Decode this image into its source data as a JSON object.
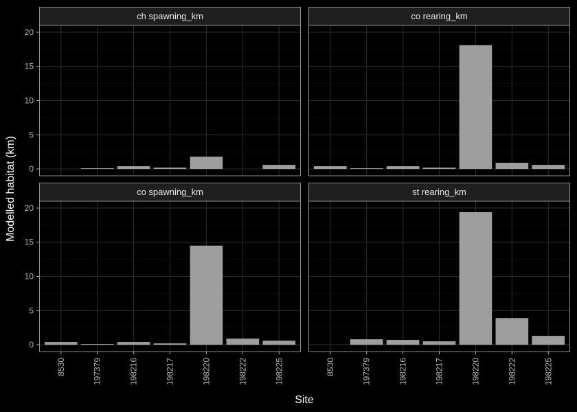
{
  "chart_data": {
    "type": "bar",
    "layout": "facet-grid 2x2",
    "xlabel": "Site",
    "ylabel": "Modelled habitat (km)",
    "categories": [
      "8530",
      "197379",
      "198216",
      "198217",
      "198220",
      "198222",
      "198225"
    ],
    "ylim": [
      -1,
      21
    ],
    "yticks": [
      0,
      5,
      10,
      15,
      20
    ],
    "grid": true,
    "colors": {
      "background": "#000000",
      "panel": "#000000",
      "strip": "#1f1f1f",
      "bar": "#9e9e9e",
      "grid_major": "#2b2b2b",
      "grid_minor": "#141414",
      "border": "#8c8c8c",
      "text": "#ffffff",
      "tick_text": "#b3b3b3"
    },
    "panels": [
      {
        "title": "ch spawning_km",
        "values": [
          0,
          0.1,
          0.4,
          0.2,
          1.8,
          0,
          0.6
        ]
      },
      {
        "title": "co rearing_km",
        "values": [
          0.4,
          0.1,
          0.4,
          0.2,
          18.1,
          0.9,
          0.6
        ]
      },
      {
        "title": "co spawning_km",
        "values": [
          0.4,
          0.1,
          0.4,
          0.2,
          14.5,
          0.9,
          0.6
        ]
      },
      {
        "title": "st rearing_km",
        "values": [
          0,
          0.8,
          0.7,
          0.5,
          19.4,
          3.9,
          1.3
        ]
      }
    ]
  }
}
